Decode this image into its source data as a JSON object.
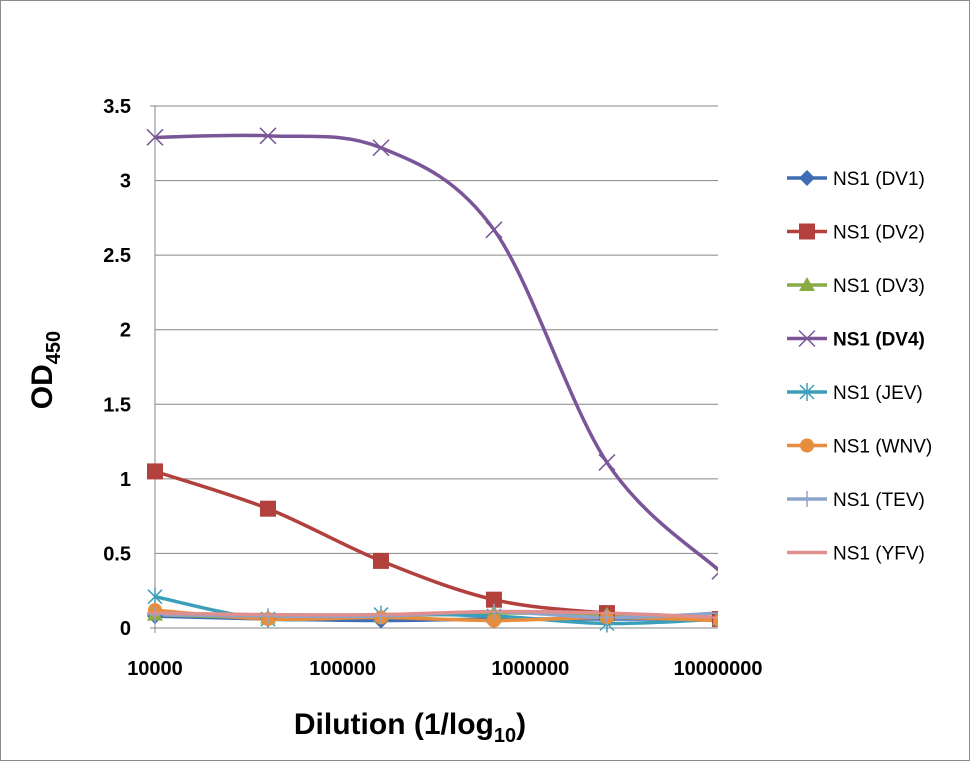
{
  "chart_data": {
    "type": "line",
    "xscale": "log",
    "xlim": [
      10000,
      10000000
    ],
    "ylim": [
      0,
      3.5
    ],
    "xlabel_main": "Dilution (1/log",
    "xlabel_sub": "10",
    "xlabel_end": ")",
    "ylabel_main": "OD",
    "ylabel_sub": "450",
    "x_ticks": [
      10000,
      100000,
      1000000,
      10000000
    ],
    "x_tick_labels": [
      "10000",
      "100000",
      "1000000",
      "10000000"
    ],
    "y_ticks": [
      0,
      0.5,
      1,
      1.5,
      2,
      2.5,
      3,
      3.5
    ],
    "y_tick_labels": [
      "0",
      "0.5",
      "1",
      "1.5",
      "2",
      "2.5",
      "3",
      "3.5"
    ],
    "grid": "horizontal",
    "legend_position": "right",
    "x": [
      10000,
      40000,
      160000,
      640000,
      2560000,
      10240000
    ],
    "series": [
      {
        "name": "NS1 (DV1)",
        "color": "#3e6db4",
        "marker": "diamond",
        "bold": false,
        "values": [
          0.08,
          0.06,
          0.05,
          0.06,
          0.06,
          0.06
        ]
      },
      {
        "name": "NS1 (DV2)",
        "color": "#b2403c",
        "marker": "square",
        "bold": false,
        "values": [
          1.05,
          0.8,
          0.45,
          0.19,
          0.1,
          0.06
        ]
      },
      {
        "name": "NS1 (DV3)",
        "color": "#8aaa45",
        "marker": "triangle",
        "bold": false,
        "values": [
          0.09,
          0.07,
          0.08,
          0.1,
          0.09,
          0.06
        ]
      },
      {
        "name": "NS1 (DV4)",
        "color": "#7a5698",
        "marker": "x",
        "bold": true,
        "values": [
          3.29,
          3.3,
          3.22,
          2.67,
          1.11,
          0.38
        ]
      },
      {
        "name": "NS1 (JEV)",
        "color": "#3c9fba",
        "marker": "asterisk",
        "bold": false,
        "values": [
          0.21,
          0.06,
          0.09,
          0.08,
          0.03,
          0.06
        ]
      },
      {
        "name": "NS1 (WNV)",
        "color": "#e68d3e",
        "marker": "circle",
        "bold": false,
        "values": [
          0.12,
          0.06,
          0.07,
          0.05,
          0.07,
          0.05
        ]
      },
      {
        "name": "NS1 (TEV)",
        "color": "#8ea5cb",
        "marker": "plus",
        "bold": false,
        "values": [
          0.09,
          0.08,
          0.08,
          0.11,
          0.07,
          0.1
        ]
      },
      {
        "name": "NS1 (YFV)",
        "color": "#df8f8d",
        "marker": "dash",
        "bold": false,
        "values": [
          0.1,
          0.09,
          0.09,
          0.11,
          0.1,
          0.07
        ]
      }
    ]
  }
}
